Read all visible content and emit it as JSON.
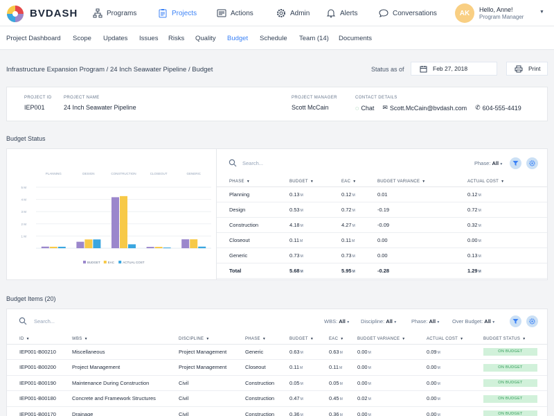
{
  "app": {
    "logo_text": "BVDASH"
  },
  "topnav": [
    {
      "label": "Programs",
      "icon": "org-chart-icon",
      "active": false
    },
    {
      "label": "Projects",
      "icon": "clipboard-icon",
      "active": true
    },
    {
      "label": "Actions",
      "icon": "actions-icon",
      "active": false
    },
    {
      "label": "Admin",
      "icon": "gear-icon",
      "active": false
    },
    {
      "label": "Alerts",
      "icon": "bell-icon",
      "active": false
    },
    {
      "label": "Conversations",
      "icon": "chat-icon",
      "active": false
    }
  ],
  "user": {
    "initials": "AK",
    "greeting": "Hello, Anne!",
    "role": "Program Manager"
  },
  "subnav": [
    {
      "label": "Project Dashboard",
      "active": false
    },
    {
      "label": "Scope",
      "active": false
    },
    {
      "label": "Updates",
      "active": false
    },
    {
      "label": "Issues",
      "active": false
    },
    {
      "label": "Risks",
      "active": false
    },
    {
      "label": "Quality",
      "active": false
    },
    {
      "label": "Budget",
      "active": true
    },
    {
      "label": "Schedule",
      "active": false
    },
    {
      "label": "Team (14)",
      "active": false
    },
    {
      "label": "Documents",
      "active": false
    }
  ],
  "breadcrumb": "Infrastructure Expansion Program / 24 Inch Seawater Pipeline / Budget",
  "status_as_of": {
    "label": "Status as of",
    "date": "Feb 27, 2018"
  },
  "print_label": "Print",
  "project": {
    "id_label": "PROJECT ID",
    "id": "IEP001",
    "name_label": "PROJECT NAME",
    "name": "24 Inch Seawater Pipeline",
    "manager_label": "PROJECT MANAGER",
    "manager": "Scott McCain",
    "contact_label": "CONTACT DETAILS",
    "chat": "Chat",
    "email": "Scott.McCain@bvdash.com",
    "phone": "604-555-4419"
  },
  "budget_status": {
    "title": "Budget Status",
    "search_placeholder": "Search...",
    "filter_label": "Phase:",
    "filter_value": "All",
    "columns": [
      "PHASE",
      "BUDGET",
      "EAC",
      "BUDGET VARIANCE",
      "ACTUAL COST"
    ],
    "unit": "M",
    "rows": [
      {
        "phase": "Planning",
        "budget": "0.13",
        "eac": "0.12",
        "variance": "0.01",
        "actual": "0.12",
        "neg": false
      },
      {
        "phase": "Design",
        "budget": "0.53",
        "eac": "0.72",
        "variance": "-0.19",
        "actual": "0.72",
        "neg": true
      },
      {
        "phase": "Construction",
        "budget": "4.18",
        "eac": "4.27",
        "variance": "-0.09",
        "actual": "0.32",
        "neg": true
      },
      {
        "phase": "Closeout",
        "budget": "0.11",
        "eac": "0.11",
        "variance": "0.00",
        "actual": "0.00",
        "neg": false
      },
      {
        "phase": "Generic",
        "budget": "0.73",
        "eac": "0.73",
        "variance": "0.00",
        "actual": "0.13",
        "neg": false
      }
    ],
    "total": {
      "label": "Total",
      "budget": "5.68",
      "eac": "5.95",
      "variance": "-0.28",
      "actual": "1.29"
    }
  },
  "chart_data": {
    "type": "bar",
    "categories": [
      "PLANNING",
      "DESIGN",
      "CONSTRUCTION",
      "CLOSEOUT",
      "GENERIC"
    ],
    "series": [
      {
        "name": "BUDGET",
        "values": [
          0.13,
          0.53,
          4.18,
          0.11,
          0.73
        ],
        "color": "#9b87cc"
      },
      {
        "name": "EAC",
        "values": [
          0.12,
          0.72,
          4.27,
          0.11,
          0.73
        ],
        "color": "#f7c948"
      },
      {
        "name": "ACTUAL COST",
        "values": [
          0.12,
          0.72,
          0.32,
          0.0,
          0.13
        ],
        "color": "#3aa6e0"
      }
    ],
    "yticks": [
      "5 M",
      "4 M",
      "3 M",
      "2 M",
      "1 M"
    ],
    "ylim": [
      0,
      5
    ],
    "legend_position": "bottom",
    "grid": true
  },
  "budget_items": {
    "title": "Budget Items (20)",
    "search_placeholder": "Search...",
    "filters": [
      {
        "label": "WBS:",
        "value": "All"
      },
      {
        "label": "Discipline:",
        "value": "All"
      },
      {
        "label": "Phase:",
        "value": "All"
      },
      {
        "label": "Over Budget:",
        "value": "All"
      }
    ],
    "columns": [
      "ID",
      "WBS",
      "DISCIPLINE",
      "PHASE",
      "BUDGET",
      "EAC",
      "BUDGET VARIANCE",
      "ACTUAL COST",
      "BUDGET STATUS"
    ],
    "unit": "M",
    "rows": [
      {
        "id": "IEP001-B00210",
        "wbs": "Miscellaneous",
        "discipline": "Project Management",
        "phase": "Generic",
        "budget": "0.63",
        "eac": "0.63",
        "variance": "0.00",
        "actual": "0.09",
        "status": "ON BUDGET"
      },
      {
        "id": "IEP001-B00200",
        "wbs": "Project Management",
        "discipline": "Project Management",
        "phase": "Closeout",
        "budget": "0.11",
        "eac": "0.11",
        "variance": "0.00",
        "actual": "0.00",
        "status": "ON BUDGET"
      },
      {
        "id": "IEP001-B00190",
        "wbs": "Maintenance During Construction",
        "discipline": "Civil",
        "phase": "Construction",
        "budget": "0.05",
        "eac": "0.05",
        "variance": "0.00",
        "actual": "0.00",
        "status": "ON BUDGET"
      },
      {
        "id": "IEP001-B00180",
        "wbs": "Concrete and Framework Structures",
        "discipline": "Civil",
        "phase": "Construction",
        "budget": "0.47",
        "eac": "0.45",
        "variance": "0.02",
        "actual": "0.00",
        "status": "ON BUDGET"
      },
      {
        "id": "IEP001-B00170",
        "wbs": "Drainage",
        "discipline": "Civil",
        "phase": "Construction",
        "budget": "0.36",
        "eac": "0.36",
        "variance": "0.00",
        "actual": "0.00",
        "status": "ON BUDGET"
      }
    ]
  },
  "colors": {
    "accent": "#3b82f6",
    "negative": "#e5484d",
    "on_budget_bg": "#d1f1da",
    "on_budget_text": "#2e9a55"
  }
}
